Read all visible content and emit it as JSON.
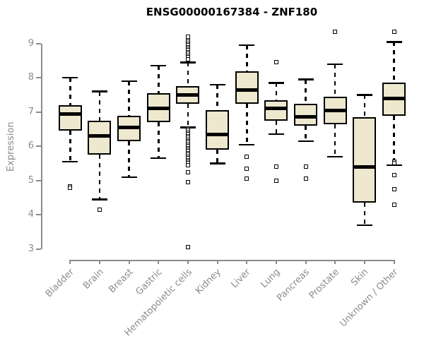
{
  "colors": {
    "box_fill": "#EDE8CE",
    "box_border": "#000000",
    "median": "#000000",
    "axis_gray": "#8B8B8B",
    "title_color": "#000000",
    "background": "#FFFFFF"
  },
  "chart_data": {
    "type": "boxplot",
    "title": "ENSG00000167384 - ZNF180",
    "xlabel": "",
    "ylabel": "Expression",
    "ylim": [
      3,
      9
    ],
    "yticks": [
      3,
      4,
      5,
      6,
      7,
      8,
      9
    ],
    "grid": false,
    "legend": "none",
    "categories": [
      "Bladder",
      "Brain",
      "Breast",
      "Gastric",
      "Hematopoietic cells",
      "Kidney",
      "Liver",
      "Lung",
      "Pancreas",
      "Prostate",
      "Skin",
      "Unknown / Other"
    ],
    "series": [
      {
        "category": "Bladder",
        "whislo": 5.55,
        "q1": 6.45,
        "med": 6.95,
        "q3": 7.2,
        "whishi": 8.0,
        "outliers": [
          4.82,
          4.78
        ]
      },
      {
        "category": "Brain",
        "whislo": 4.45,
        "q1": 5.75,
        "med": 6.3,
        "q3": 6.75,
        "whishi": 7.6,
        "outliers": [
          4.15
        ]
      },
      {
        "category": "Breast",
        "whislo": 5.1,
        "q1": 6.15,
        "med": 6.55,
        "q3": 6.9,
        "whishi": 7.9,
        "outliers": []
      },
      {
        "category": "Gastric",
        "whislo": 5.65,
        "q1": 6.7,
        "med": 7.1,
        "q3": 7.55,
        "whishi": 8.35,
        "outliers": []
      },
      {
        "category": "Hematopoietic cells",
        "whislo": 6.55,
        "q1": 7.25,
        "med": 7.5,
        "q3": 7.75,
        "whishi": 8.45,
        "outliers": [
          9.2,
          9.1,
          9.05,
          9.0,
          8.95,
          8.9,
          8.85,
          8.8,
          8.75,
          8.7,
          8.65,
          8.6,
          8.55,
          6.5,
          6.45,
          6.4,
          6.35,
          6.3,
          6.25,
          6.2,
          6.15,
          6.1,
          6.05,
          6.0,
          5.95,
          5.9,
          5.85,
          5.8,
          5.75,
          5.7,
          5.65,
          5.6,
          5.55,
          5.5,
          5.45,
          5.25,
          4.95,
          3.05
        ]
      },
      {
        "category": "Kidney",
        "whislo": 5.5,
        "q1": 5.9,
        "med": 6.35,
        "q3": 7.05,
        "whishi": 7.8,
        "outliers": []
      },
      {
        "category": "Liver",
        "whislo": 6.05,
        "q1": 7.25,
        "med": 7.65,
        "q3": 8.2,
        "whishi": 8.95,
        "outliers": [
          5.7,
          5.35,
          5.05
        ]
      },
      {
        "category": "Lung",
        "whislo": 6.35,
        "q1": 6.75,
        "med": 7.1,
        "q3": 7.35,
        "whishi": 7.85,
        "outliers": [
          8.45,
          5.4,
          5.0
        ]
      },
      {
        "category": "Pancreas",
        "whislo": 6.15,
        "q1": 6.6,
        "med": 6.85,
        "q3": 7.25,
        "whishi": 7.95,
        "outliers": [
          5.4,
          5.05
        ]
      },
      {
        "category": "Prostate",
        "whislo": 5.7,
        "q1": 6.65,
        "med": 7.05,
        "q3": 7.45,
        "whishi": 8.4,
        "outliers": [
          9.35
        ]
      },
      {
        "category": "Skin",
        "whislo": 3.7,
        "q1": 4.35,
        "med": 5.4,
        "q3": 6.85,
        "whishi": 7.5,
        "outliers": []
      },
      {
        "category": "Unknown / Other",
        "whislo": 5.45,
        "q1": 6.9,
        "med": 7.4,
        "q3": 7.85,
        "whishi": 9.05,
        "outliers": [
          9.35,
          5.55,
          5.5,
          5.15,
          4.75,
          4.3
        ]
      }
    ]
  }
}
